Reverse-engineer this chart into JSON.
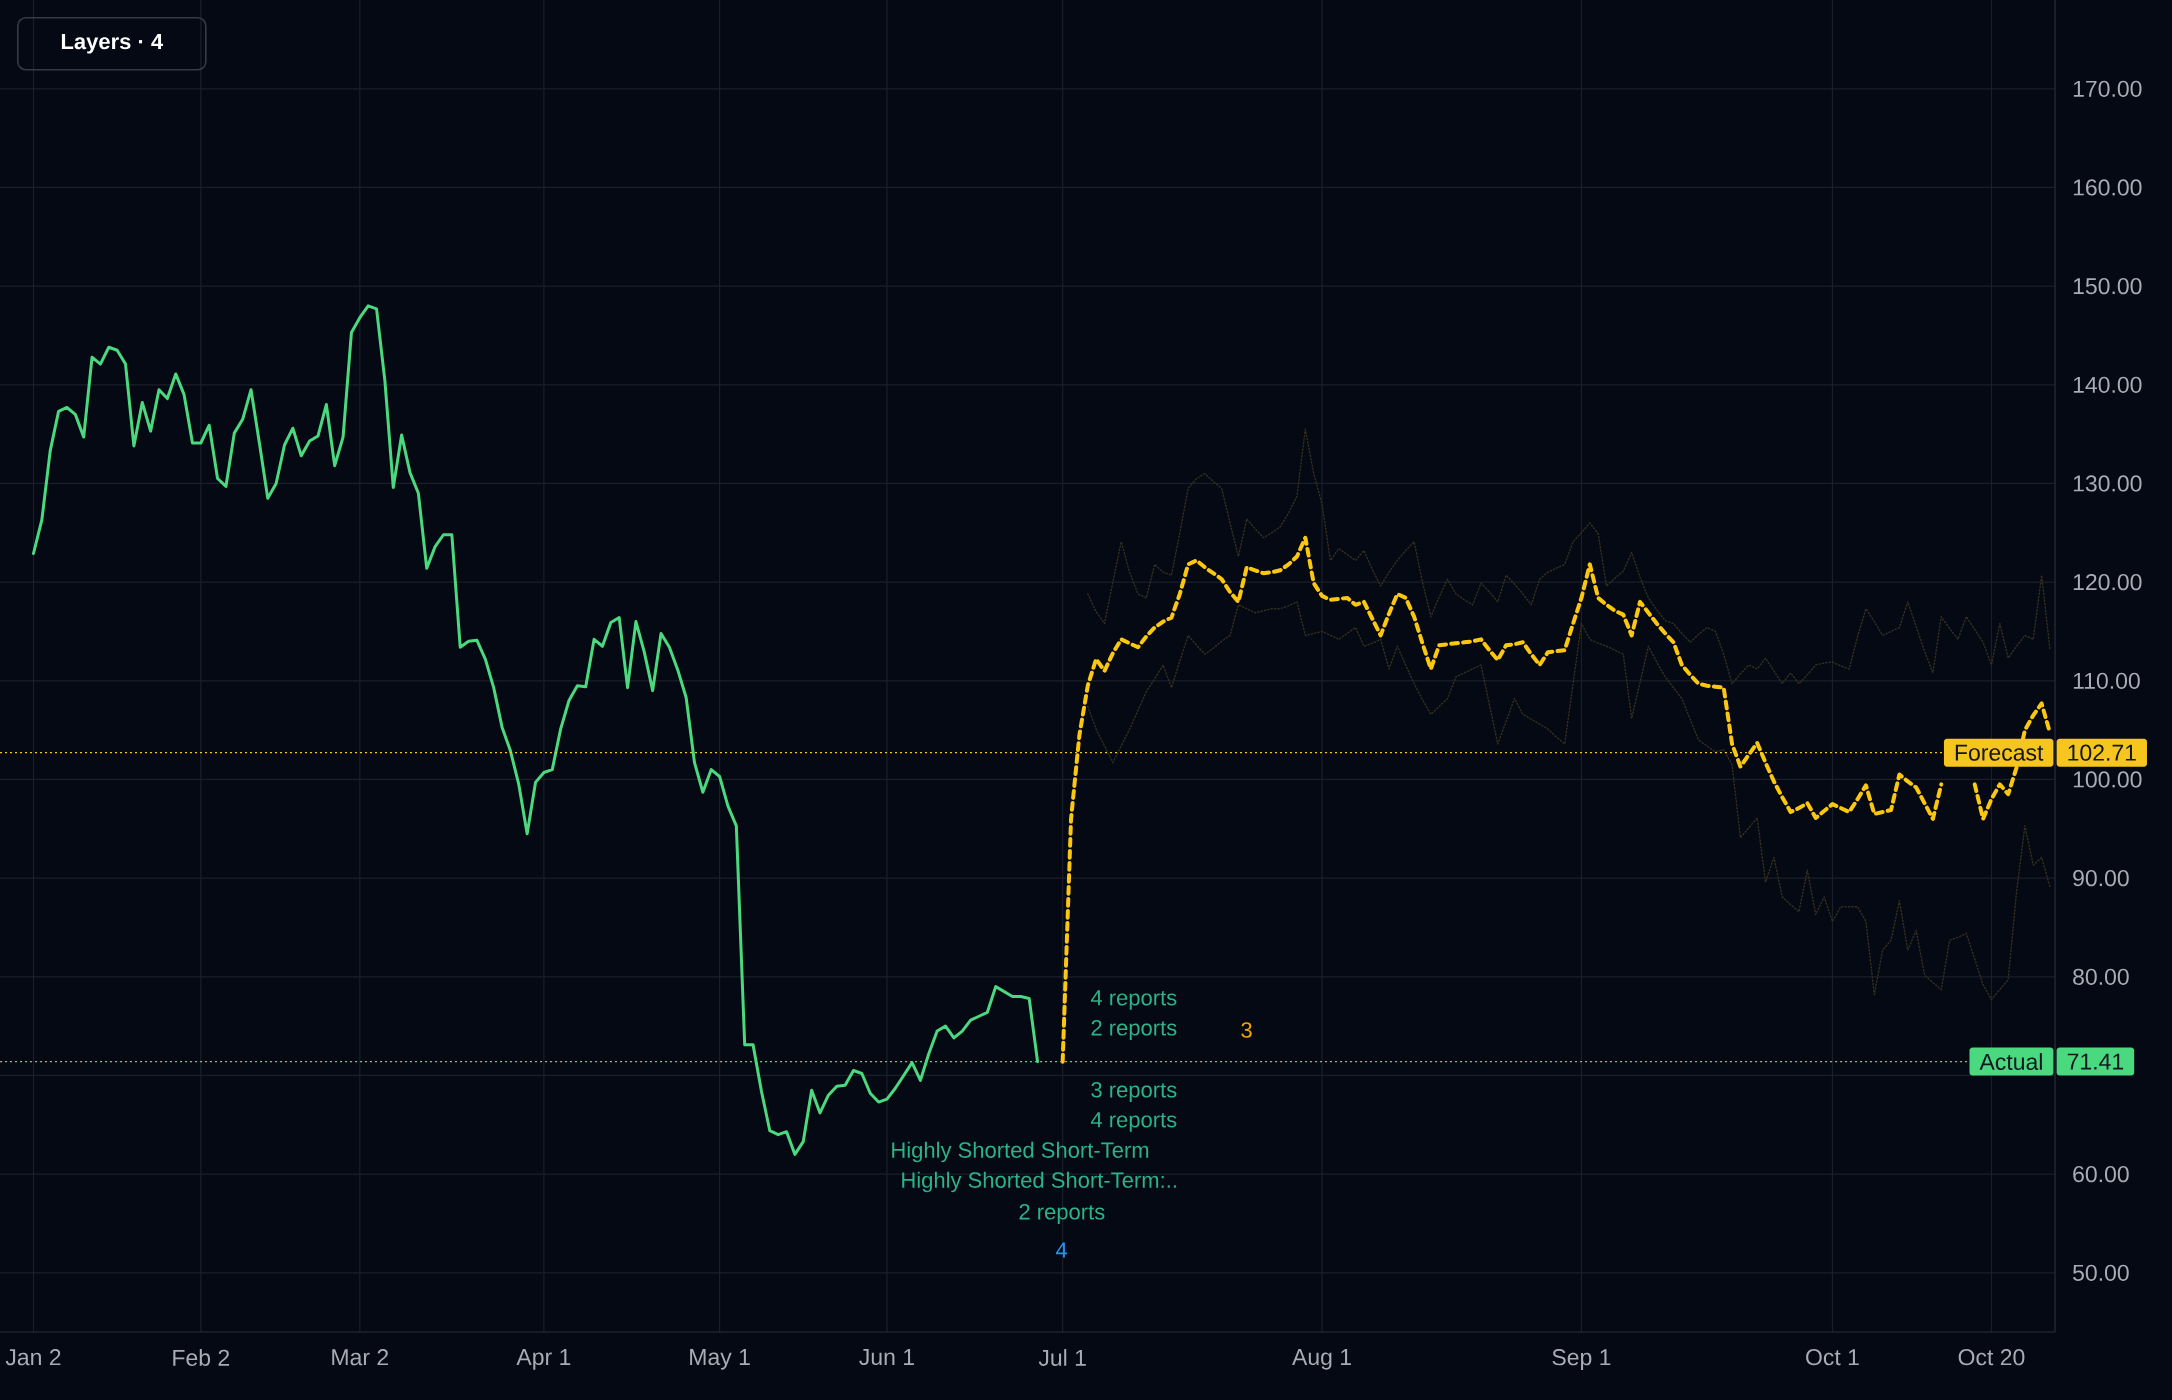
{
  "chart_data": {
    "type": "line",
    "categories": [
      "Jan 2",
      null,
      null,
      null,
      null,
      null,
      null,
      null,
      null,
      null,
      null,
      null,
      null,
      null,
      null,
      null,
      null,
      null,
      null,
      null,
      "Feb 2",
      null,
      null,
      null,
      null,
      null,
      null,
      null,
      null,
      null,
      null,
      null,
      null,
      null,
      null,
      null,
      null,
      null,
      null,
      "Mar 2",
      null,
      null,
      null,
      null,
      null,
      null,
      null,
      null,
      null,
      null,
      null,
      null,
      null,
      null,
      null,
      null,
      null,
      null,
      null,
      null,
      null,
      "Apr 1",
      null,
      null,
      null,
      null,
      null,
      null,
      null,
      null,
      null,
      null,
      null,
      null,
      null,
      null,
      null,
      null,
      null,
      null,
      null,
      null,
      "May 1",
      null,
      null,
      null,
      null,
      null,
      null,
      null,
      null,
      null,
      null,
      null,
      null,
      null,
      null,
      null,
      null,
      null,
      null,
      null,
      "Jun 1",
      null,
      null,
      null,
      null,
      null,
      null,
      null,
      null,
      null,
      null,
      null,
      null,
      null,
      null,
      null,
      null,
      null,
      null,
      null,
      null,
      "Jul 1",
      null,
      null,
      null,
      null,
      null,
      null,
      null,
      null,
      null,
      null,
      null,
      null,
      null,
      null,
      null,
      null,
      null,
      null,
      null,
      null,
      null,
      null,
      null,
      null,
      null,
      null,
      null,
      null,
      null,
      null,
      "Aug 1",
      null,
      null,
      null,
      null,
      null,
      null,
      null,
      null,
      null,
      null,
      null,
      null,
      null,
      null,
      null,
      null,
      null,
      null,
      null,
      null,
      null,
      null,
      null,
      null,
      null,
      null,
      null,
      null,
      null,
      null,
      "Sep 1",
      null,
      null,
      null,
      null,
      null,
      null,
      null,
      null,
      null,
      null,
      null,
      null,
      null,
      null,
      null,
      null,
      null,
      null,
      null,
      null,
      null,
      null,
      null,
      null,
      null,
      null,
      null,
      null,
      null,
      "Oct 1",
      null,
      null,
      null,
      null,
      null,
      null,
      null,
      null,
      null,
      null,
      null,
      null,
      null,
      null,
      null,
      null,
      null,
      null,
      "Oct 20",
      null,
      null,
      null,
      null,
      null,
      null,
      null
    ],
    "series": [
      {
        "color": "#4bd97f",
        "line_style": "solid",
        "values": [
          122.9,
          126.3,
          133.3,
          137.3,
          137.7,
          137.0,
          134.7,
          142.8,
          142.1,
          143.8,
          143.5,
          142.1,
          133.8,
          138.2,
          135.3,
          139.5,
          138.6,
          141.1,
          139.0,
          134.1,
          134.1,
          135.9,
          130.5,
          129.7,
          135.1,
          136.5,
          139.5,
          134.1,
          128.5,
          130.0,
          133.9,
          135.6,
          132.8,
          134.3,
          134.8,
          138.0,
          131.8,
          134.7,
          145.3,
          146.8,
          148.0,
          147.7,
          140.4,
          129.6,
          134.9,
          131.1,
          129.0,
          121.4,
          123.6,
          124.8,
          124.8,
          113.4,
          114.0,
          114.1,
          112.2,
          109.3,
          105.3,
          102.9,
          99.5,
          94.5,
          99.7,
          100.7,
          101.0,
          105.1,
          108.0,
          109.5,
          109.4,
          114.2,
          113.5,
          115.9,
          116.4,
          109.3,
          116.0,
          112.9,
          109.0,
          114.8,
          113.4,
          111.1,
          108.3,
          101.7,
          98.7,
          101.0,
          100.3,
          97.3,
          95.3,
          73.1,
          73.1,
          68.4,
          64.4,
          64.0,
          64.3,
          62.0,
          63.3,
          68.5,
          66.2,
          68.0,
          68.9,
          69.0,
          70.5,
          70.2,
          68.2,
          67.3,
          67.6,
          68.7,
          70.0,
          71.3,
          69.5,
          72.2,
          74.5,
          75.0,
          73.8,
          74.5,
          75.6,
          76.0,
          76.4,
          79.0,
          78.5,
          78.0,
          78.0,
          77.8,
          71.4,
          null,
          null,
          null,
          null,
          null,
          null,
          null,
          null,
          null,
          null,
          null,
          null,
          null,
          null,
          null,
          null,
          null,
          null,
          null,
          null,
          null,
          null,
          null,
          null,
          null,
          null,
          null,
          null,
          null,
          null,
          null,
          null,
          null,
          null,
          null,
          null,
          null,
          null,
          null,
          null,
          null,
          null,
          null,
          null,
          null,
          null,
          null,
          null,
          null,
          null,
          null,
          null,
          null,
          null,
          null,
          null,
          null,
          null,
          null,
          null,
          null,
          null,
          null,
          null,
          null,
          null,
          null,
          null,
          null,
          null,
          null,
          null,
          null,
          null,
          null,
          null,
          null,
          null,
          null,
          null,
          null,
          null,
          null,
          null,
          null,
          null,
          null,
          null,
          null,
          null,
          null,
          null,
          null,
          null,
          null,
          null,
          null,
          null,
          null,
          null,
          null,
          null,
          null,
          null,
          null,
          null,
          null,
          null,
          null,
          null,
          null,
          null,
          null,
          null,
          null,
          null,
          null,
          null,
          null,
          null,
          null
        ]
      },
      {
        "color": "#fcc70f",
        "line_style": "dashed",
        "values": [
          null,
          null,
          null,
          null,
          null,
          null,
          null,
          null,
          null,
          null,
          null,
          null,
          null,
          null,
          null,
          null,
          null,
          null,
          null,
          null,
          null,
          null,
          null,
          null,
          null,
          null,
          null,
          null,
          null,
          null,
          null,
          null,
          null,
          null,
          null,
          null,
          null,
          null,
          null,
          null,
          null,
          null,
          null,
          null,
          null,
          null,
          null,
          null,
          null,
          null,
          null,
          null,
          null,
          null,
          null,
          null,
          null,
          null,
          null,
          null,
          null,
          null,
          null,
          null,
          null,
          null,
          null,
          null,
          null,
          null,
          null,
          null,
          null,
          null,
          null,
          null,
          null,
          null,
          null,
          null,
          null,
          null,
          null,
          null,
          null,
          null,
          null,
          null,
          null,
          null,
          null,
          null,
          null,
          null,
          null,
          null,
          null,
          null,
          null,
          null,
          null,
          null,
          null,
          null,
          null,
          null,
          null,
          null,
          null,
          null,
          null,
          null,
          null,
          null,
          null,
          null,
          null,
          null,
          null,
          null,
          null,
          null,
          null,
          71.4,
          96.0,
          104.5,
          109.5,
          112.2,
          111.0,
          112.8,
          114.2,
          113.8,
          113.4,
          114.5,
          115.4,
          116.0,
          116.4,
          118.8,
          121.8,
          122.2,
          121.5,
          120.9,
          120.3,
          119.0,
          118.0,
          121.5,
          121.2,
          120.9,
          121.0,
          121.2,
          121.8,
          122.6,
          124.5,
          119.9,
          118.6,
          118.2,
          118.3,
          118.4,
          117.7,
          118.0,
          116.3,
          114.6,
          116.8,
          118.8,
          118.4,
          116.5,
          113.8,
          111.2,
          113.6,
          113.7,
          113.8,
          113.9,
          114.0,
          114.2,
          113.1,
          112.1,
          113.6,
          113.7,
          113.9,
          112.7,
          111.6,
          112.9,
          113.0,
          113.1,
          115.8,
          118.4,
          121.8,
          118.4,
          117.7,
          117.1,
          116.7,
          114.6,
          118.0,
          116.9,
          115.8,
          114.8,
          113.9,
          111.6,
          110.6,
          109.7,
          109.5,
          109.4,
          109.3,
          103.6,
          101.3,
          102.5,
          103.7,
          101.7,
          99.8,
          98.2,
          96.7,
          97.1,
          97.6,
          96.1,
          96.8,
          97.5,
          97.1,
          96.7,
          98.0,
          99.4,
          96.5,
          96.7,
          96.9,
          100.5,
          99.8,
          99.2,
          97.6,
          96.0,
          99.5,
          null,
          null,
          null,
          99.5,
          96.0,
          98.0,
          99.5,
          98.5,
          101.2,
          105.0,
          106.5,
          107.7,
          104.7
        ]
      },
      {
        "color": "#34301f",
        "line_style": "dotted",
        "values": [
          null,
          null,
          null,
          null,
          null,
          null,
          null,
          null,
          null,
          null,
          null,
          null,
          null,
          null,
          null,
          null,
          null,
          null,
          null,
          null,
          null,
          null,
          null,
          null,
          null,
          null,
          null,
          null,
          null,
          null,
          null,
          null,
          null,
          null,
          null,
          null,
          null,
          null,
          null,
          null,
          null,
          null,
          null,
          null,
          null,
          null,
          null,
          null,
          null,
          null,
          null,
          null,
          null,
          null,
          null,
          null,
          null,
          null,
          null,
          null,
          null,
          null,
          null,
          null,
          null,
          null,
          null,
          null,
          null,
          null,
          null,
          null,
          null,
          null,
          null,
          null,
          null,
          null,
          null,
          null,
          null,
          null,
          null,
          null,
          null,
          null,
          null,
          null,
          null,
          null,
          null,
          null,
          null,
          null,
          null,
          null,
          null,
          null,
          null,
          null,
          null,
          null,
          null,
          null,
          null,
          null,
          null,
          null,
          null,
          null,
          null,
          null,
          null,
          null,
          null,
          null,
          null,
          null,
          null,
          null,
          null,
          null,
          null,
          null,
          null,
          null,
          118.8,
          117.0,
          115.8,
          120.0,
          124.1,
          121.0,
          118.8,
          118.4,
          121.8,
          121.0,
          120.7,
          125.0,
          129.5,
          130.5,
          131.0,
          130.2,
          129.5,
          126.0,
          122.6,
          126.4,
          125.4,
          124.5,
          125.0,
          125.6,
          127.0,
          128.7,
          135.5,
          131.0,
          127.9,
          122.2,
          123.4,
          122.8,
          122.2,
          123.2,
          121.3,
          119.6,
          121.0,
          122.2,
          123.2,
          124.1,
          120.0,
          116.5,
          118.5,
          120.3,
          118.8,
          118.2,
          117.7,
          119.9,
          119.0,
          118.0,
          120.7,
          119.8,
          118.8,
          117.7,
          120.3,
          121.0,
          121.4,
          121.8,
          124.1,
          125.0,
          126.0,
          124.9,
          119.6,
          120.4,
          121.1,
          123.0,
          120.5,
          118.4,
          117.2,
          116.1,
          115.8,
          114.8,
          113.9,
          114.7,
          115.4,
          115.0,
          112.7,
          109.7,
          110.7,
          111.6,
          111.2,
          112.3,
          111.0,
          109.7,
          110.8,
          109.7,
          110.6,
          111.6,
          111.8,
          111.9,
          111.5,
          111.2,
          114.5,
          117.3,
          116.0,
          114.6,
          115.0,
          115.4,
          118.0,
          115.5,
          113.0,
          110.8,
          116.5,
          115.3,
          114.2,
          116.5,
          115.2,
          113.9,
          111.6,
          115.8,
          112.3,
          113.5,
          114.6,
          114.2,
          120.7,
          113.1
        ]
      },
      {
        "color": "#34301f",
        "line_style": "dotted",
        "values": [
          null,
          null,
          null,
          null,
          null,
          null,
          null,
          null,
          null,
          null,
          null,
          null,
          null,
          null,
          null,
          null,
          null,
          null,
          null,
          null,
          null,
          null,
          null,
          null,
          null,
          null,
          null,
          null,
          null,
          null,
          null,
          null,
          null,
          null,
          null,
          null,
          null,
          null,
          null,
          null,
          null,
          null,
          null,
          null,
          null,
          null,
          null,
          null,
          null,
          null,
          null,
          null,
          null,
          null,
          null,
          null,
          null,
          null,
          null,
          null,
          null,
          null,
          null,
          null,
          null,
          null,
          null,
          null,
          null,
          null,
          null,
          null,
          null,
          null,
          null,
          null,
          null,
          null,
          null,
          null,
          null,
          null,
          null,
          null,
          null,
          null,
          null,
          null,
          null,
          null,
          null,
          null,
          null,
          null,
          null,
          null,
          null,
          null,
          null,
          null,
          null,
          null,
          null,
          null,
          null,
          null,
          null,
          null,
          null,
          null,
          null,
          null,
          null,
          null,
          null,
          null,
          null,
          null,
          null,
          null,
          null,
          null,
          null,
          null,
          null,
          null,
          107.4,
          105.1,
          103.4,
          101.7,
          103.4,
          105.1,
          107.0,
          108.9,
          110.2,
          111.6,
          109.3,
          112.0,
          114.6,
          113.6,
          112.7,
          113.3,
          114.0,
          114.6,
          117.7,
          117.3,
          116.9,
          117.1,
          117.3,
          117.3,
          117.6,
          118.0,
          114.6,
          114.8,
          115.0,
          114.6,
          114.2,
          114.8,
          115.4,
          113.5,
          113.8,
          114.2,
          111.2,
          113.5,
          111.6,
          109.7,
          108.1,
          106.6,
          107.4,
          108.2,
          110.4,
          110.8,
          111.2,
          111.6,
          107.6,
          103.6,
          105.9,
          108.2,
          106.6,
          106.1,
          105.6,
          105.1,
          104.3,
          103.6,
          109.7,
          115.8,
          114.2,
          113.8,
          113.5,
          113.1,
          112.7,
          106.2,
          109.8,
          113.5,
          111.9,
          110.4,
          109.3,
          108.2,
          106.1,
          104.0,
          103.4,
          102.8,
          103.0,
          101.5,
          94.1,
          95.1,
          96.1,
          89.6,
          92.1,
          88.1,
          87.3,
          86.6,
          90.8,
          86.3,
          88.1,
          85.6,
          87.1,
          87.1,
          87.1,
          85.6,
          78.2,
          82.7,
          83.7,
          87.7,
          82.7,
          84.7,
          80.2,
          79.4,
          78.7,
          83.7,
          84.0,
          84.4,
          81.8,
          79.2,
          77.7,
          78.7,
          79.7,
          88.6,
          95.3,
          91.3,
          92.1,
          89.1
        ]
      }
    ],
    "ylim": [
      44,
      179
    ],
    "yticks": [
      {
        "value": 50,
        "label": "50.00"
      },
      {
        "value": 60,
        "label": "60.00"
      },
      {
        "value": 70,
        "label": null
      },
      {
        "value": 80,
        "label": "80.00"
      },
      {
        "value": 90,
        "label": "90.00"
      },
      {
        "value": 100,
        "label": "100.00"
      },
      {
        "value": 110,
        "label": "110.00"
      },
      {
        "value": 120,
        "label": "120.00"
      },
      {
        "value": 130,
        "label": "130.00"
      },
      {
        "value": 140,
        "label": "140.00"
      },
      {
        "value": 150,
        "label": "150.00"
      },
      {
        "value": 160,
        "label": "160.00"
      },
      {
        "value": 170,
        "label": "170.00"
      }
    ],
    "grid": true,
    "ref_lines": [
      {
        "axis": "y",
        "value": 102.71,
        "label": "Forecast",
        "color": "#f7c61e",
        "line_style": "dotted"
      },
      {
        "axis": "y",
        "value": 71.41,
        "label": "Actual",
        "color": "#4bd97f",
        "line_style": "dotted"
      }
    ],
    "annotations": [
      "Layers · 4",
      "102.71",
      "71.41",
      "4 reports",
      "2 reports",
      "3",
      "3 reports",
      "4 reports",
      "Highly Shorted Short-Term",
      "Highly Shorted Short-Term:..",
      "2 reports",
      "4"
    ]
  }
}
